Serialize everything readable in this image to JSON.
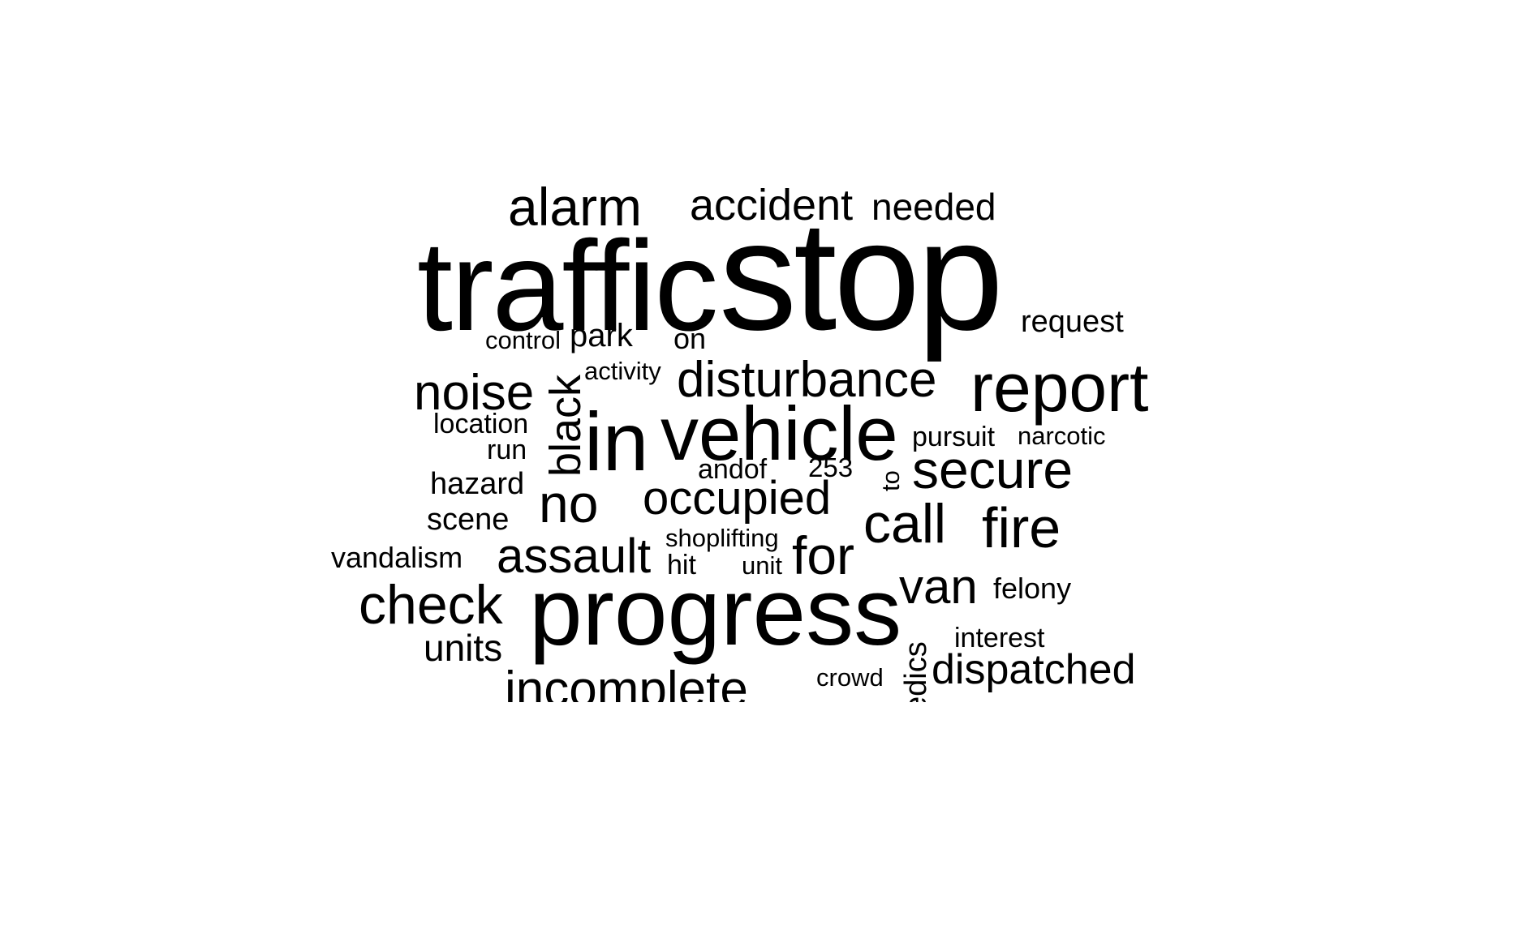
{
  "wordcloud": {
    "color": "#000000",
    "background": "#ffffff",
    "words": {
      "traffic": "traffic",
      "stop": "stop",
      "alarm": "alarm",
      "accident": "accident",
      "needed": "needed",
      "request": "request",
      "control": "control",
      "park": "park",
      "on": "on",
      "activity": "activity",
      "disturbance": "disturbance",
      "report": "report",
      "noise": "noise",
      "black": "black",
      "in": "in",
      "vehicle": "vehicle",
      "location": "location",
      "pursuit": "pursuit",
      "narcotic": "narcotic",
      "run": "run",
      "andof": "andof",
      "n253": "253",
      "to": "to",
      "secure": "secure",
      "hazard": "hazard",
      "no": "no",
      "occupied": "occupied",
      "call": "call",
      "fire": "fire",
      "scene": "scene",
      "shoplifting": "shoplifting",
      "vandalism": "vandalism",
      "assault": "assault",
      "hit": "hit",
      "unit": "unit",
      "for": "for",
      "van": "van",
      "felony": "felony",
      "check": "check",
      "progress": "progress",
      "paramedics": "edics",
      "interest": "interest",
      "units": "units",
      "dispatched": "dispatched",
      "crowd": "crowd",
      "incomplete": "incomplete"
    }
  }
}
